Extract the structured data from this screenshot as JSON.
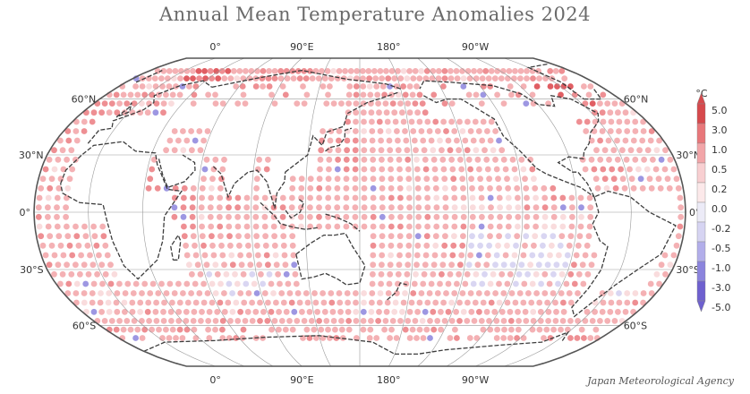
{
  "title": "Annual Mean Temperature Anomalies 2024",
  "credit": "Japan Meteorological Agency",
  "longitude_labels": [
    {
      "text": "0°",
      "lon": 0
    },
    {
      "text": "90°E",
      "lon": 90
    },
    {
      "text": "180°",
      "lon": 180
    },
    {
      "text": "90°W",
      "lon": -90
    }
  ],
  "latitude_labels": [
    {
      "text": "60°N",
      "lat": 60
    },
    {
      "text": "30°N",
      "lat": 30
    },
    {
      "text": "0°",
      "lat": 0
    },
    {
      "text": "30°S",
      "lat": -30
    },
    {
      "text": "60°S",
      "lat": -60
    }
  ],
  "map": {
    "projection": "Robinson",
    "central_longitude": "150°E",
    "grid": "30° graticule",
    "marker": "circle per grid cell"
  },
  "colorbar": {
    "unit": "°C",
    "ticks": [
      "5.0",
      "3.0",
      "1.0",
      "0.5",
      "0.2",
      "0.0",
      "-0.2",
      "-0.5",
      "-1.0",
      "-3.0",
      "-5.0"
    ],
    "colors": [
      "#d6494c",
      "#e8777a",
      "#f2a5a8",
      "#f8cfd1",
      "#fce9ea",
      "#ecebf7",
      "#d6d4f2",
      "#b2aeea",
      "#8b84dd",
      "#6e60cf"
    ]
  },
  "pattern": {
    "ocean_default": "#f4b1b4",
    "warm": "#ee8f93",
    "hot": "#e05e63",
    "neutral": "#f9dcdd",
    "cool": "#d9d6f2",
    "cold": "#9d97e2"
  }
}
